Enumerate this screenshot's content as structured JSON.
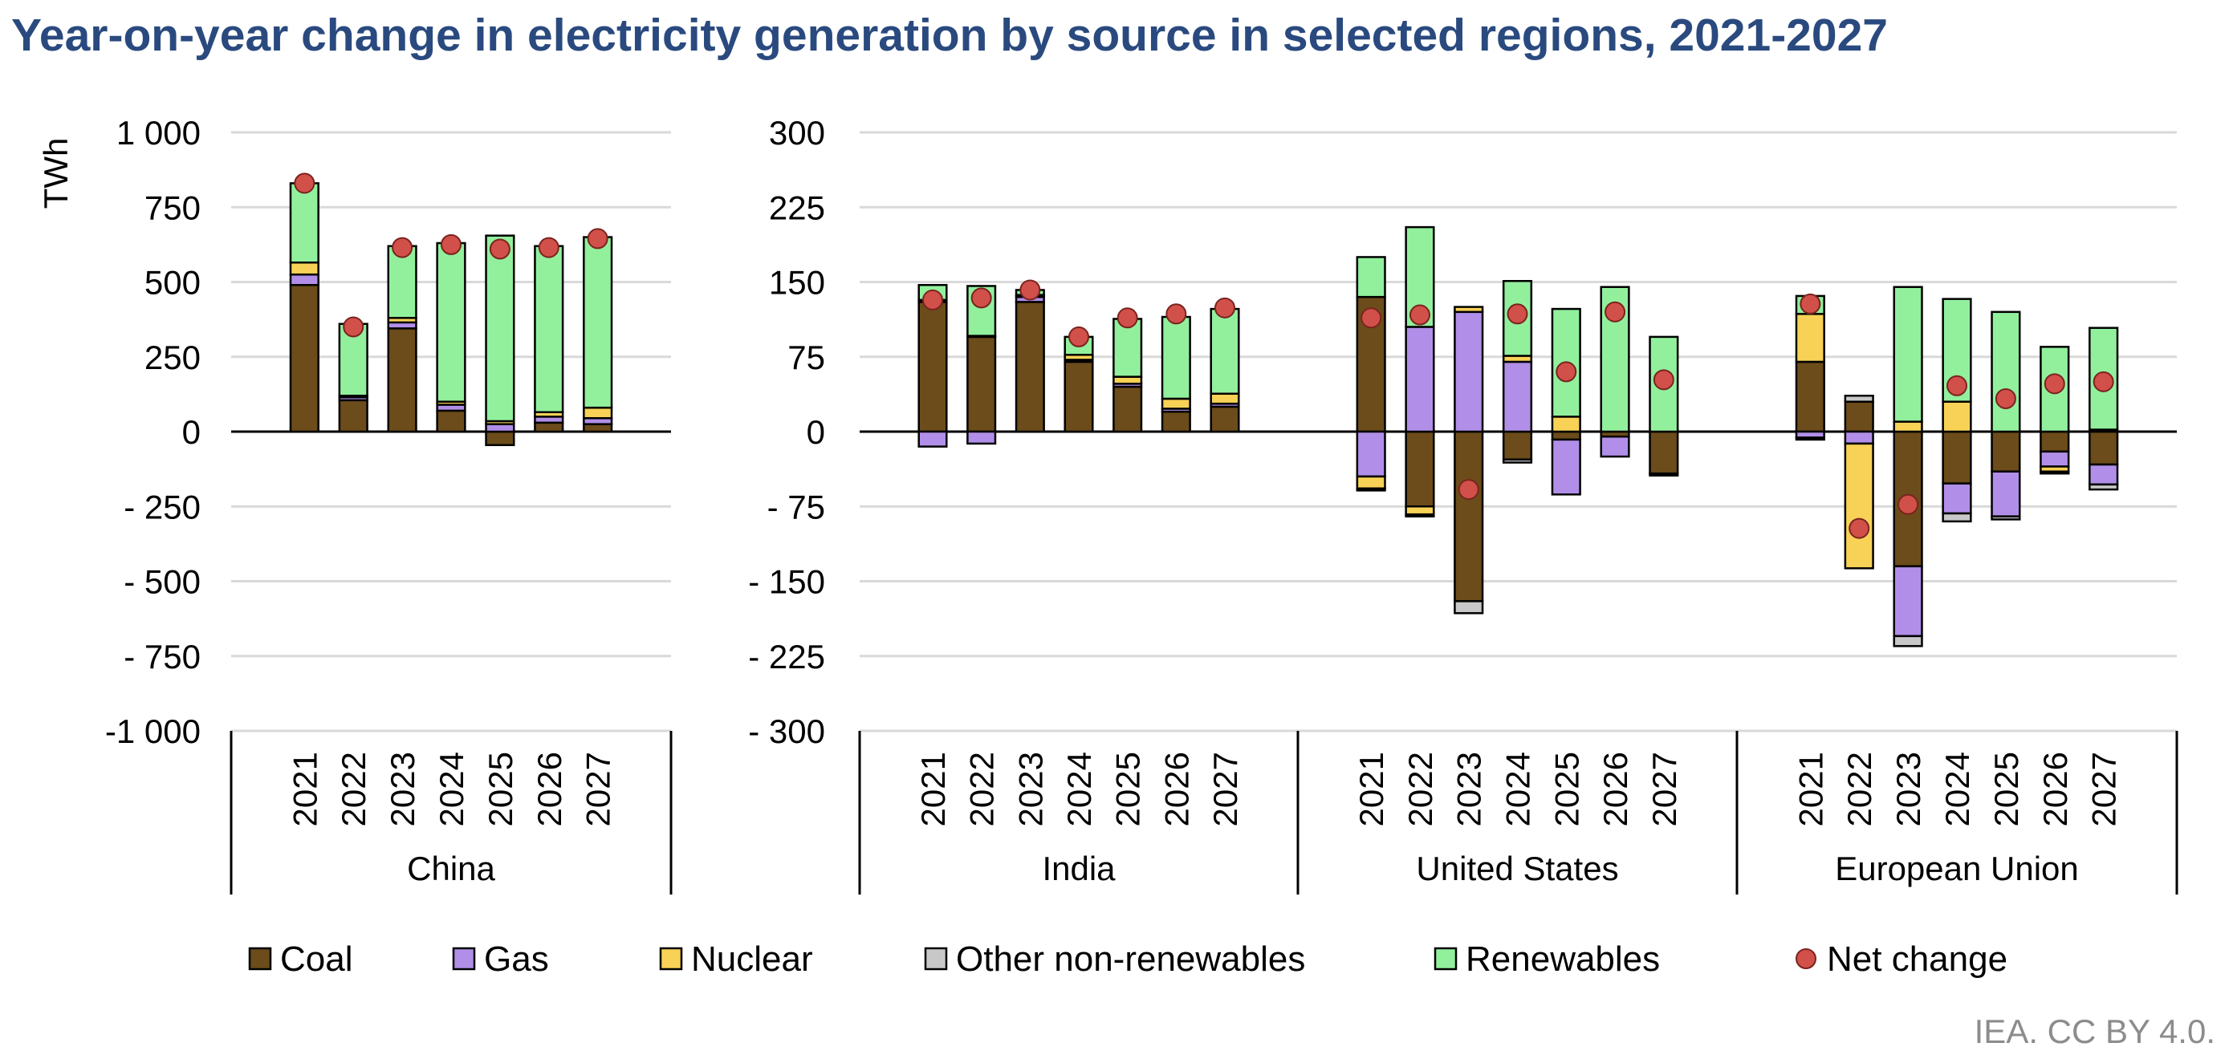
{
  "title": "Year-on-year change in electricity generation by source in selected regions, 2021-2027",
  "credit": "IEA. CC BY 4.0.",
  "chart_data": [
    {
      "type": "bar",
      "stacked": true,
      "region": "China",
      "ylabel": "TWh",
      "ylim": [
        -1000,
        1000
      ],
      "yticks": [
        1000,
        750,
        500,
        250,
        0,
        -250,
        -500,
        -750,
        -1000
      ],
      "ytick_labels": [
        "1 000",
        "750",
        "500",
        "250",
        "0",
        "- 250",
        "- 500",
        "- 750",
        "-1 000"
      ],
      "categories": [
        "2021",
        "2022",
        "2023",
        "2024",
        "2025",
        "2026",
        "2027"
      ],
      "series": [
        {
          "name": "Coal",
          "values": [
            490,
            105,
            345,
            70,
            -45,
            30,
            25
          ]
        },
        {
          "name": "Gas",
          "values": [
            35,
            10,
            20,
            20,
            25,
            20,
            20
          ]
        },
        {
          "name": "Nuclear",
          "values": [
            40,
            5,
            15,
            10,
            10,
            15,
            35
          ]
        },
        {
          "name": "Other non-renewables",
          "values": [
            0,
            0,
            0,
            0,
            0,
            0,
            0
          ]
        },
        {
          "name": "Renewables",
          "values": [
            265,
            240,
            240,
            530,
            620,
            555,
            570
          ]
        }
      ],
      "net_change": [
        830,
        350,
        615,
        625,
        610,
        615,
        645
      ]
    },
    {
      "type": "bar",
      "stacked": true,
      "region": "India",
      "ylim": [
        -300,
        300
      ],
      "yticks": [
        300,
        225,
        150,
        75,
        0,
        -75,
        -150,
        -225,
        -300
      ],
      "ytick_labels": [
        "300",
        "225",
        "150",
        "75",
        "0",
        "- 75",
        "- 150",
        "- 225",
        "- 300"
      ],
      "categories": [
        "2021",
        "2022",
        "2023",
        "2024",
        "2025",
        "2026",
        "2027"
      ],
      "series": [
        {
          "name": "Coal",
          "values": [
            130,
            95,
            130,
            70,
            45,
            20,
            25
          ]
        },
        {
          "name": "Gas",
          "values": [
            -15,
            -12,
            5,
            2,
            3,
            3,
            3
          ]
        },
        {
          "name": "Nuclear",
          "values": [
            2,
            1,
            2,
            5,
            7,
            10,
            10
          ]
        },
        {
          "name": "Other non-renewables",
          "values": [
            0,
            0,
            0,
            0,
            0,
            0,
            0
          ]
        },
        {
          "name": "Renewables",
          "values": [
            15,
            50,
            5,
            18,
            58,
            82,
            85
          ]
        }
      ],
      "net_change": [
        132,
        134,
        142,
        95,
        114,
        118,
        124
      ]
    },
    {
      "type": "bar",
      "stacked": true,
      "region": "United States",
      "ylim": [
        -300,
        300
      ],
      "categories": [
        "2021",
        "2022",
        "2023",
        "2024",
        "2025",
        "2026",
        "2027"
      ],
      "series": [
        {
          "name": "Coal",
          "values": [
            135,
            -75,
            -170,
            -28,
            -8,
            -5,
            -42
          ]
        },
        {
          "name": "Gas",
          "values": [
            -45,
            105,
            120,
            70,
            -55,
            -20,
            0
          ]
        },
        {
          "name": "Nuclear",
          "values": [
            -12,
            -8,
            5,
            6,
            15,
            0,
            0
          ]
        },
        {
          "name": "Other non-renewables",
          "values": [
            -2,
            -2,
            -12,
            -3,
            0,
            0,
            -2
          ]
        },
        {
          "name": "Renewables",
          "values": [
            40,
            100,
            0,
            75,
            108,
            145,
            95
          ]
        }
      ],
      "net_change": [
        114,
        117,
        -58,
        118,
        60,
        120,
        52
      ]
    },
    {
      "type": "bar",
      "stacked": true,
      "region": "European Union",
      "ylim": [
        -300,
        300
      ],
      "categories": [
        "2021",
        "2022",
        "2023",
        "2024",
        "2025",
        "2026",
        "2027"
      ],
      "series": [
        {
          "name": "Coal",
          "values": [
            70,
            30,
            -135,
            -52,
            -40,
            -20,
            -33
          ]
        },
        {
          "name": "Gas",
          "values": [
            -6,
            -12,
            -70,
            -30,
            -45,
            -15,
            -20
          ]
        },
        {
          "name": "Nuclear",
          "values": [
            48,
            -125,
            10,
            30,
            0,
            -5,
            2
          ]
        },
        {
          "name": "Other non-renewables",
          "values": [
            -2,
            6,
            -10,
            -8,
            -3,
            -2,
            -5
          ]
        },
        {
          "name": "Renewables",
          "values": [
            18,
            0,
            135,
            103,
            120,
            85,
            102
          ]
        }
      ],
      "net_change": [
        128,
        -97,
        -73,
        46,
        33,
        48,
        50
      ]
    }
  ],
  "legend": [
    {
      "key": "coal",
      "label": "Coal",
      "color": "#6b4c1a",
      "shape": "square"
    },
    {
      "key": "gas",
      "label": "Gas",
      "color": "#b18fe8",
      "shape": "square"
    },
    {
      "key": "nuclear",
      "label": "Nuclear",
      "color": "#f8d256",
      "shape": "square"
    },
    {
      "key": "other",
      "label": "Other non-renewables",
      "color": "#c8c8c8",
      "shape": "square"
    },
    {
      "key": "renewables",
      "label": "Renewables",
      "color": "#92f09d",
      "shape": "square"
    },
    {
      "key": "net",
      "label": "Net change",
      "color": "#d2504a",
      "shape": "circle"
    }
  ]
}
